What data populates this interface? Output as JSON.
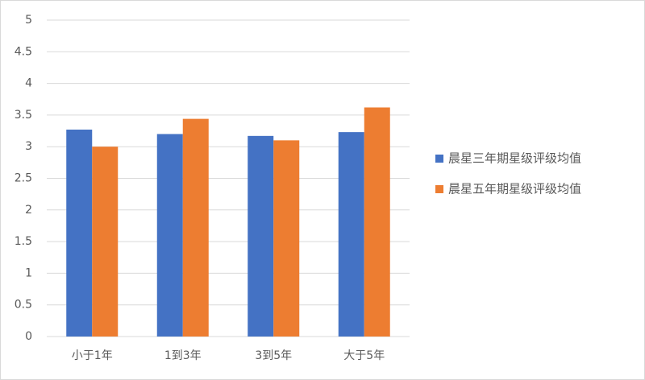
{
  "chart_data": {
    "type": "bar",
    "categories": [
      "小于1年",
      "1到3年",
      "3到5年",
      "大于5年"
    ],
    "series": [
      {
        "name": "晨星三年期星级评级均值",
        "color": "#4472c4",
        "values": [
          3.27,
          3.2,
          3.17,
          3.23
        ]
      },
      {
        "name": "晨星五年期星级评级均值",
        "color": "#ed7d31",
        "values": [
          3.0,
          3.44,
          3.1,
          3.62
        ]
      }
    ],
    "ylim": [
      0,
      5
    ],
    "yticks": [
      0,
      0.5,
      1,
      1.5,
      2,
      2.5,
      3,
      3.5,
      4,
      4.5,
      5
    ],
    "grid": true,
    "legend": "right"
  }
}
